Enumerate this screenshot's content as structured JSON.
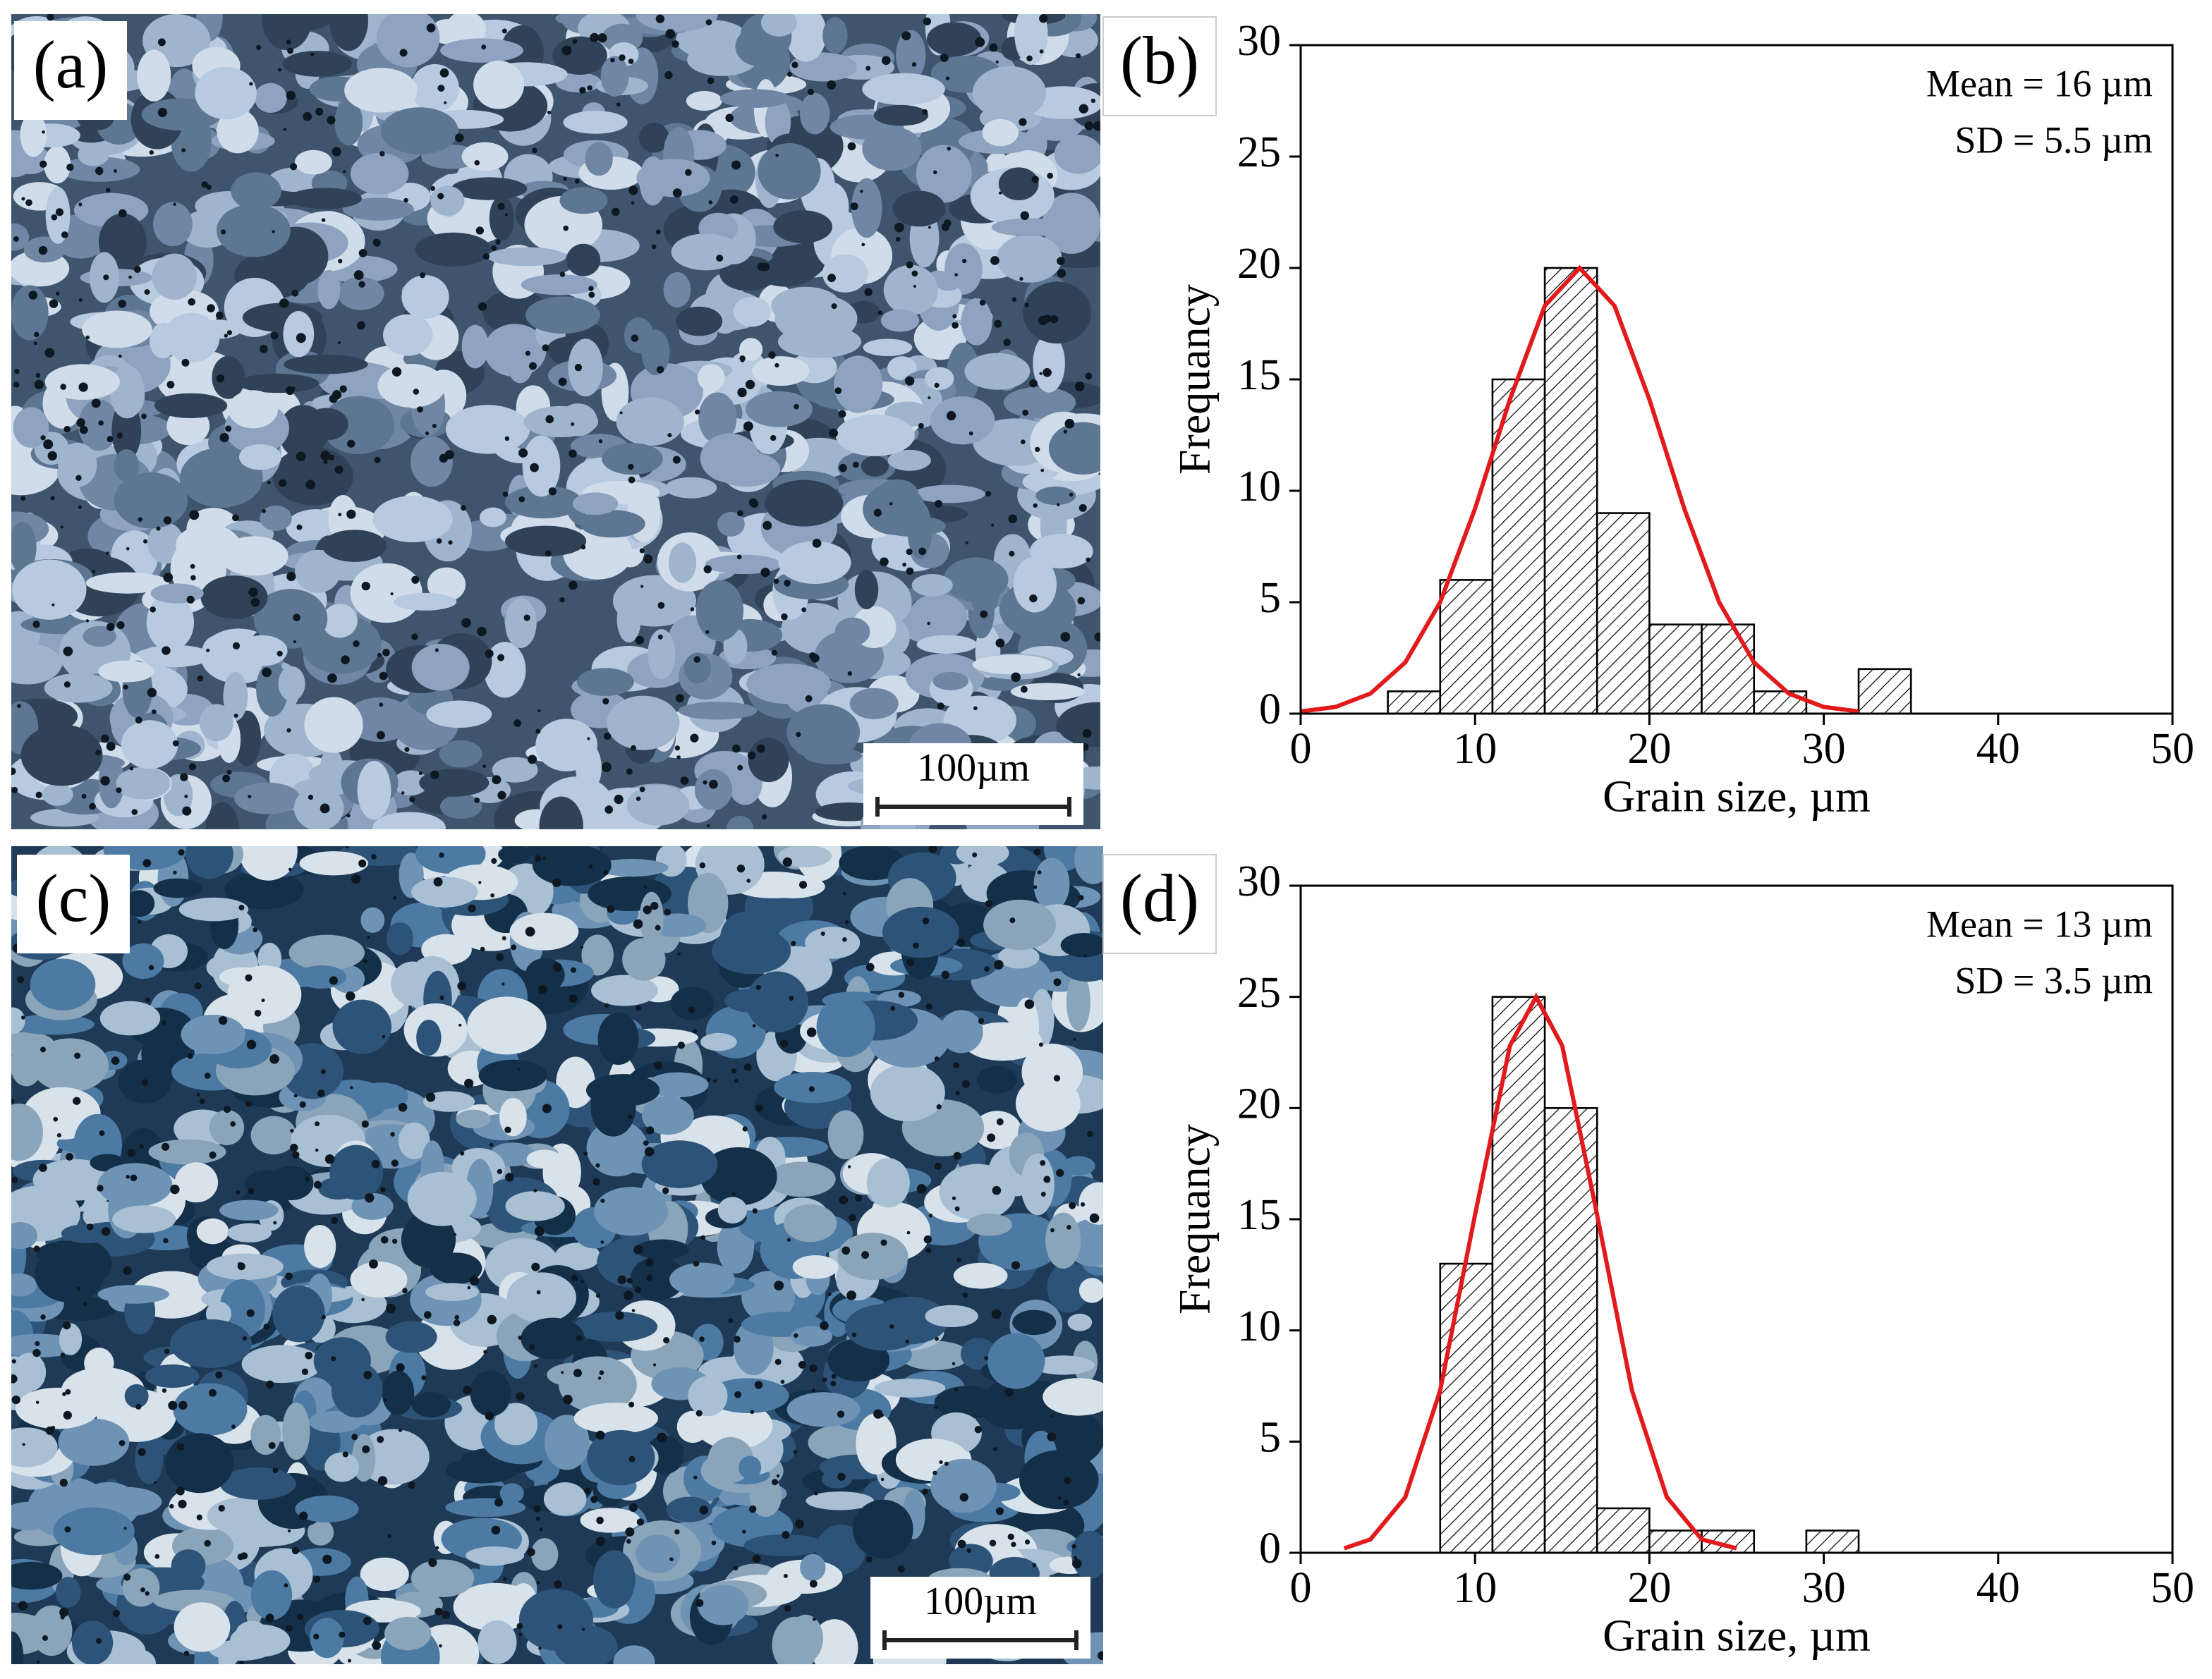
{
  "panels": [
    {
      "label": "(a)",
      "scale_bar": "100µm"
    },
    {
      "label": "(c)",
      "scale_bar": "100µm"
    }
  ],
  "chart_data": [
    {
      "type": "histogram",
      "panel_label": "(b)",
      "annotations": [
        "Mean = 16 µm",
        "SD = 5.5 µm"
      ],
      "xlabel": "Grain size, µm",
      "ylabel": "Frequancy",
      "bins": [
        5,
        8,
        11,
        14,
        17,
        20,
        23,
        26,
        29,
        32,
        35
      ],
      "values": [
        1,
        6,
        15,
        20,
        9,
        4,
        4,
        1,
        0,
        2
      ],
      "color": "#000000",
      "fit": {
        "color": "#e31a1c",
        "x": [
          0,
          2,
          4,
          6,
          8,
          10,
          12,
          14,
          16,
          18,
          20,
          22,
          24,
          26,
          28,
          30,
          32
        ],
        "values": [
          0.1,
          0.3,
          0.9,
          2.3,
          5,
          9.2,
          14.1,
          18.3,
          20,
          18.3,
          14.1,
          9.2,
          5,
          2.3,
          0.9,
          0.3,
          0.1
        ]
      },
      "xlim": [
        0,
        50
      ],
      "ylim": [
        0,
        30
      ],
      "xticks": [
        0,
        10,
        20,
        30,
        40,
        50
      ],
      "yticks": [
        0,
        5,
        10,
        15,
        20,
        25,
        30
      ]
    },
    {
      "type": "histogram",
      "panel_label": "(d)",
      "annotations": [
        "Mean = 13 µm",
        "SD = 3.5 µm"
      ],
      "xlabel": "Grain size, µm",
      "ylabel": "Frequancy",
      "bins": [
        8,
        11,
        14,
        17,
        20,
        23,
        26,
        29,
        32
      ],
      "values": [
        13,
        25,
        20,
        2,
        1,
        1,
        0,
        1
      ],
      "color": "#000000",
      "fit": {
        "color": "#e31a1c",
        "x": [
          2.5,
          4,
          6,
          8,
          10,
          12,
          13.5,
          15,
          17,
          19,
          21,
          23,
          25
        ],
        "values": [
          0.2,
          0.6,
          2.5,
          7.3,
          15.2,
          22.8,
          25,
          22.8,
          15.2,
          7.3,
          2.5,
          0.6,
          0.2
        ]
      },
      "xlim": [
        0,
        50
      ],
      "ylim": [
        0,
        30
      ],
      "xticks": [
        0,
        10,
        20,
        30,
        40,
        50
      ],
      "yticks": [
        0,
        5,
        10,
        15,
        20,
        25,
        30
      ]
    }
  ]
}
